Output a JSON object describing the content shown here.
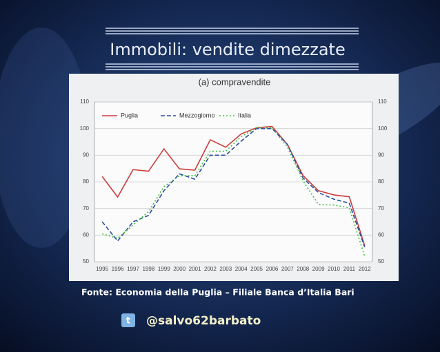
{
  "slide_title": "Immobili: vendite dimezzate",
  "chart_data": {
    "type": "line",
    "title": "(a) compravendite",
    "categories": [
      "1995",
      "1996",
      "1997",
      "1998",
      "1999",
      "2000",
      "2001",
      "2002",
      "2003",
      "2004",
      "2005",
      "2006",
      "2007",
      "2008",
      "2009",
      "2010",
      "2011",
      "2012"
    ],
    "series": [
      {
        "name": "Puglia",
        "color": "#cc3b3b",
        "style": "solid",
        "values": [
          82,
          74.3,
          84.6,
          84,
          92.4,
          84.9,
          84.4,
          95.8,
          93,
          98,
          100.3,
          100.8,
          94,
          82.4,
          76.7,
          75.1,
          74.4,
          56
        ]
      },
      {
        "name": "Mezzogiorno",
        "color": "#2b4c9b",
        "style": "dashed",
        "values": [
          65,
          57.8,
          65,
          67.4,
          76.7,
          83,
          81,
          90,
          90,
          95.3,
          100,
          100,
          94,
          81.5,
          76,
          73.5,
          72,
          55.5
        ]
      },
      {
        "name": "Italia",
        "color": "#3fbf3f",
        "style": "dotted",
        "values": [
          60.5,
          58.8,
          63.8,
          68.8,
          78.2,
          82.3,
          82.3,
          91.5,
          91.5,
          97,
          100.3,
          100.3,
          93,
          80.5,
          71.5,
          71.3,
          70.3,
          52
        ]
      }
    ],
    "ylim": [
      50,
      110
    ],
    "yticks": [
      50,
      60,
      70,
      80,
      90,
      100,
      110
    ],
    "grid": true,
    "legend": "top-left"
  },
  "source": "Fonte: Economia della Puglia – Filiale Banca d’Italia Bari",
  "handle": "@salvo62barbato"
}
